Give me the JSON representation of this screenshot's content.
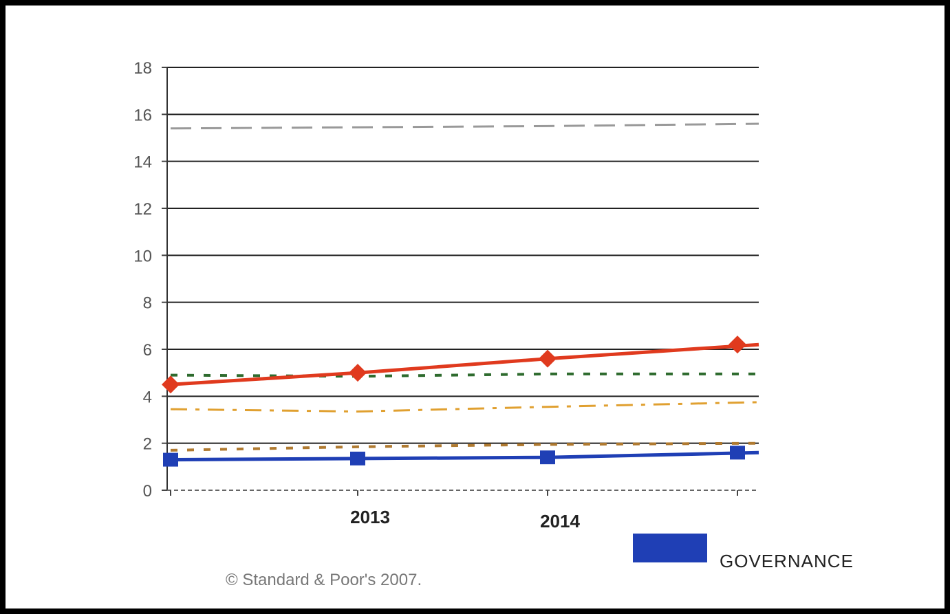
{
  "chart_data": {
    "type": "line",
    "x": [
      "",
      "2013",
      "2014",
      ""
    ],
    "ylim": [
      0,
      18
    ],
    "yticks": [
      0,
      2,
      4,
      6,
      8,
      10,
      12,
      14,
      16,
      18
    ],
    "grid": true,
    "legend_position": "bottom-right",
    "series": [
      {
        "name": "GOVERNANCE",
        "values": [
          1.3,
          1.35,
          1.4,
          1.6
        ],
        "color": "#1f3fb5",
        "style": "solid",
        "marker": "square"
      },
      {
        "values": [
          4.5,
          5.0,
          5.6,
          6.2
        ],
        "color": "#e03a1e",
        "style": "solid",
        "marker": "diamond"
      },
      {
        "values": [
          15.4,
          15.45,
          15.5,
          15.6
        ],
        "color": "#999999",
        "style": "dash"
      },
      {
        "values": [
          4.9,
          4.85,
          4.95,
          4.95
        ],
        "color": "#2e6b2e",
        "style": "dot"
      },
      {
        "values": [
          3.45,
          3.35,
          3.55,
          3.75
        ],
        "color": "#e0a030",
        "style": "dashdot"
      },
      {
        "values": [
          1.7,
          1.85,
          1.95,
          2.0
        ],
        "color": "#b07a30",
        "style": "dot"
      }
    ]
  },
  "copyright": "© Standard & Poor's 2007.",
  "colors": {
    "frame": "#000000",
    "gridline": "#222222"
  }
}
